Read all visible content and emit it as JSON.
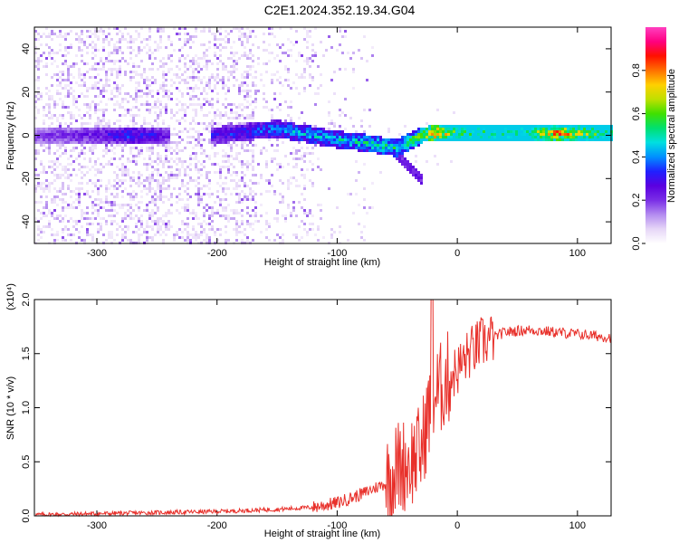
{
  "title": "C2E1.2024.352.19.34.G04",
  "chart_data": [
    {
      "type": "heatmap",
      "xlabel": "Height of straight line (km)",
      "ylabel": "Frequency (Hz)",
      "xlim": [
        -352,
        128
      ],
      "ylim": [
        -50,
        50
      ],
      "xticks": [
        -300,
        -200,
        -100,
        0,
        100
      ],
      "yticks": [
        -40,
        -20,
        0,
        20,
        40
      ],
      "colorbar": {
        "label": "Normalized spectral amplitude",
        "range": [
          0,
          1
        ],
        "ticks": [
          0.0,
          0.2,
          0.4,
          0.6,
          0.8
        ],
        "colors": [
          "#ffffff",
          "#e6d6f7",
          "#b48cf0",
          "#7a2ee6",
          "#5a00e0",
          "#2020ff",
          "#0090ff",
          "#00e0e0",
          "#00e070",
          "#40e000",
          "#c0e000",
          "#ffd000",
          "#ff7000",
          "#ff1000",
          "#ff0080",
          "#ff40c0"
        ]
      },
      "ridge": [
        {
          "x": -350,
          "y": 0,
          "amp": 0.2
        },
        {
          "x": -300,
          "y": 0,
          "amp": 0.25
        },
        {
          "x": -270,
          "y": 0,
          "amp": 0.35
        },
        {
          "x": -240,
          "y": 0,
          "amp": 0.25
        },
        {
          "x": -200,
          "y": 0,
          "amp": 0.3
        },
        {
          "x": -150,
          "y": 3,
          "amp": 0.4
        },
        {
          "x": -120,
          "y": 0,
          "amp": 0.45
        },
        {
          "x": -100,
          "y": -2,
          "amp": 0.45
        },
        {
          "x": -70,
          "y": -4,
          "amp": 0.5
        },
        {
          "x": -50,
          "y": -6,
          "amp": 0.5
        },
        {
          "x": -30,
          "y": 0,
          "amp": 0.6
        },
        {
          "x": -20,
          "y": 1,
          "amp": 0.85
        },
        {
          "x": 0,
          "y": 1,
          "amp": 0.55
        },
        {
          "x": 50,
          "y": 1,
          "amp": 0.5
        },
        {
          "x": 85,
          "y": 1,
          "amp": 0.8
        },
        {
          "x": 128,
          "y": 1,
          "amp": 0.5
        }
      ]
    },
    {
      "type": "line",
      "xlabel": "Height of straight line (km)",
      "ylabel": "SNR (10 * v/v)",
      "yscale_label": "(x10⁴)",
      "xlim": [
        -352,
        128
      ],
      "ylim": [
        0,
        2.0
      ],
      "xticks": [
        -300,
        -200,
        -100,
        0,
        100
      ],
      "yticks": [
        0.0,
        0.5,
        1.0,
        1.5,
        2.0
      ],
      "series": [
        {
          "color": "#e8302a",
          "x": [
            -352,
            -300,
            -250,
            -200,
            -150,
            -120,
            -100,
            -80,
            -60,
            -50,
            -40,
            -30,
            -25,
            -20,
            -15,
            -10,
            -5,
            0,
            10,
            20,
            30,
            40,
            60,
            80,
            100,
            128
          ],
          "y": [
            0.01,
            0.02,
            0.03,
            0.04,
            0.06,
            0.08,
            0.12,
            0.2,
            0.3,
            0.45,
            0.5,
            0.6,
            0.9,
            1.1,
            1.15,
            1.25,
            1.3,
            1.35,
            1.5,
            1.6,
            1.65,
            1.7,
            1.72,
            1.7,
            1.68,
            1.65
          ]
        }
      ]
    }
  ]
}
